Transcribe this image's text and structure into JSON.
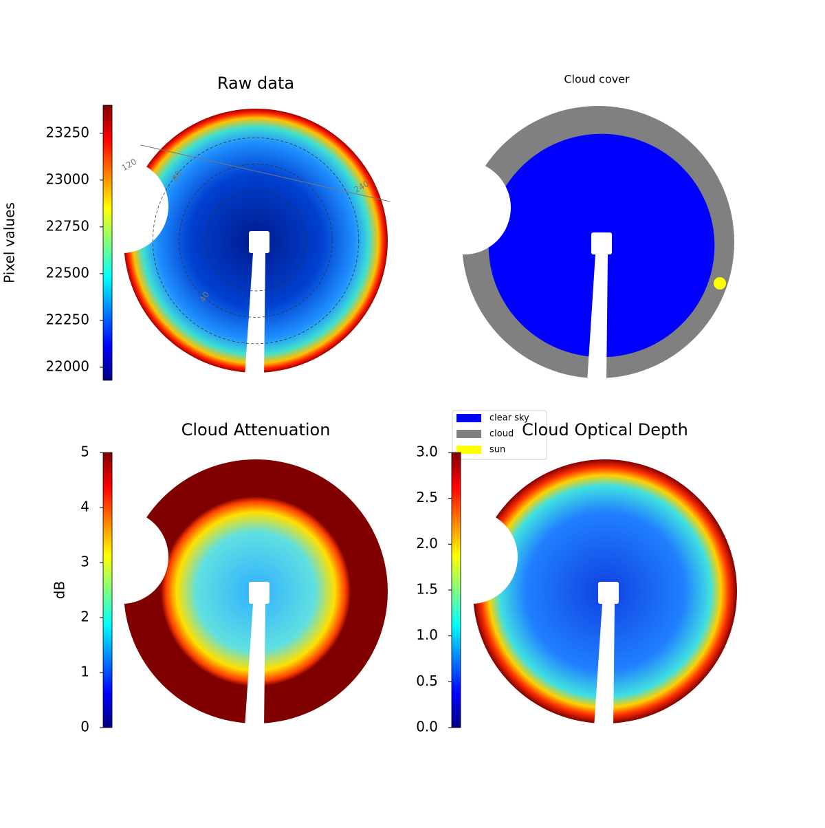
{
  "chart_data": [
    {
      "type": "image",
      "title": "Raw data",
      "colorbar_label": "Pixel values",
      "colormap": "jet",
      "clim": [
        21930,
        23400
      ],
      "cticks": [
        22000,
        22250,
        22500,
        22750,
        23000,
        23250
      ],
      "annotations": [
        "120",
        "80",
        "240",
        "40"
      ]
    },
    {
      "type": "image",
      "title": "Cloud cover",
      "series": [
        {
          "name": "clear sky",
          "color": "#0000ff"
        },
        {
          "name": "cloud",
          "color": "#808080"
        },
        {
          "name": "sun",
          "color": "#ffff00"
        }
      ]
    },
    {
      "type": "image",
      "title": "Cloud Attenuation",
      "colorbar_label": "dB",
      "colormap": "jet",
      "clim": [
        0,
        5
      ],
      "cticks": [
        0,
        1,
        2,
        3,
        4,
        5
      ]
    },
    {
      "type": "image",
      "title": "Cloud Optical Depth",
      "colormap": "jet",
      "clim": [
        0,
        3
      ],
      "cticks": [
        {
          "value": 0,
          "label": "0.0"
        },
        0.5,
        {
          "value": 1,
          "label": "1.0"
        },
        1.5,
        {
          "value": 2,
          "label": "2.0"
        },
        2.5,
        {
          "value": 3,
          "label": "3.0"
        }
      ]
    }
  ]
}
